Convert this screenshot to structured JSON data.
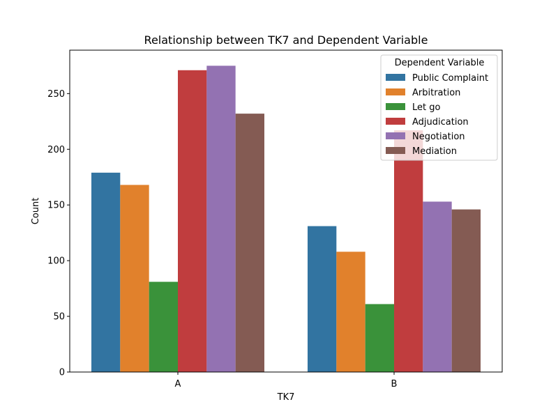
{
  "chart_data": {
    "type": "bar",
    "title": "Relationship between TK7 and Dependent Variable",
    "xlabel": "TK7",
    "ylabel": "Count",
    "categories": [
      "A",
      "B"
    ],
    "ylim": [
      0,
      289
    ],
    "yticks": [
      0,
      50,
      100,
      150,
      200,
      250
    ],
    "grid": false,
    "legend": {
      "title": "Dependent Variable",
      "placement": "top-right"
    },
    "series": [
      {
        "name": "Public Complaint",
        "color": "#3274a1",
        "values": [
          179,
          131
        ]
      },
      {
        "name": "Arbitration",
        "color": "#e1812c",
        "values": [
          168,
          108
        ]
      },
      {
        "name": "Let go",
        "color": "#3a923a",
        "values": [
          81,
          61
        ]
      },
      {
        "name": "Adjudication",
        "color": "#c03d3e",
        "values": [
          271,
          217
        ]
      },
      {
        "name": "Negotiation",
        "color": "#9372b2",
        "values": [
          275,
          153
        ]
      },
      {
        "name": "Mediation",
        "color": "#845b53",
        "values": [
          232,
          146
        ]
      }
    ]
  }
}
